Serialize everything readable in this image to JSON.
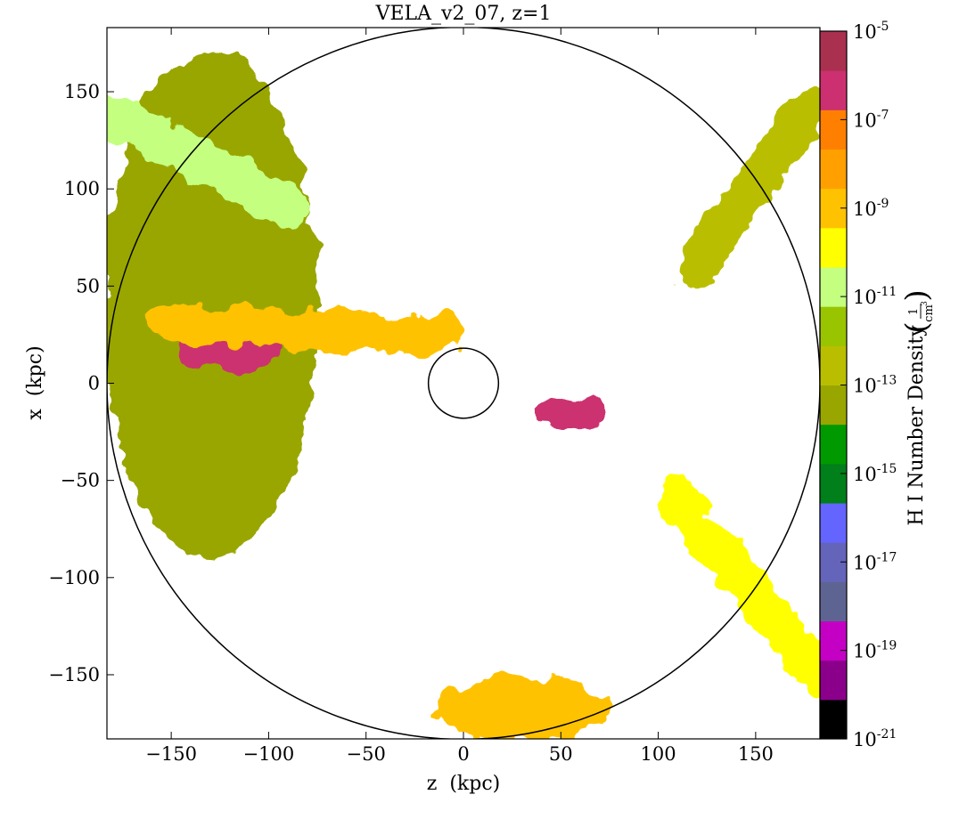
{
  "chart_data": {
    "type": "heatmap",
    "title": "VELA_v2_07, z=1",
    "xlabel": "z  (kpc)",
    "ylabel": "x  (kpc)",
    "xlim": [
      -183,
      183
    ],
    "ylim": [
      -183,
      183
    ],
    "x_ticks": [
      -150,
      -100,
      -50,
      0,
      50,
      100,
      150
    ],
    "y_ticks": [
      150,
      100,
      50,
      0,
      -50,
      -100,
      -150
    ],
    "x_tick_labels": [
      "−150",
      "−100",
      "−50",
      "0",
      "50",
      "100",
      "150"
    ],
    "y_tick_labels": [
      "150",
      "100",
      "50",
      "0",
      "−50",
      "−100",
      "−150"
    ],
    "circles": [
      {
        "center": [
          0,
          0
        ],
        "radius": 183
      },
      {
        "center": [
          0,
          0
        ],
        "radius": 18
      }
    ],
    "colorbar": {
      "label": "H I Number Density",
      "unit_numerator": "1",
      "unit_denominator": "cm",
      "unit_power": "3",
      "scale": "log",
      "range_exponent": [
        -21,
        -5
      ],
      "tick_exponents": [
        -5,
        -7,
        -9,
        -11,
        -13,
        -15,
        -17,
        -19,
        -21
      ],
      "tick_base": "10",
      "bins_low_to_high": [
        "#000000",
        "#8b008b",
        "#c400c4",
        "#5e6492",
        "#6464bb",
        "#6464ff",
        "#007f1a",
        "#009900",
        "#99a600",
        "#b9bf00",
        "#99c400",
        "#c4ff80",
        "#ffff00",
        "#ffc200",
        "#ffa000",
        "#ff7f00",
        "#cc3070",
        "#aa3050"
      ]
    },
    "regions": [
      {
        "name": "outer-halo",
        "shape": "blob",
        "center": [
          -130,
          40
        ],
        "extent": [
          55,
          130
        ],
        "color_bin": 8
      },
      {
        "name": "upper-left-filament",
        "shape": "band",
        "from": [
          -183,
          140
        ],
        "to": [
          -90,
          90
        ],
        "color_bin": 11
      },
      {
        "name": "left-dense-clump",
        "shape": "blob",
        "center": [
          -120,
          20
        ],
        "extent": [
          28,
          14
        ],
        "color_bin": 16
      },
      {
        "name": "left-stream",
        "shape": "band",
        "from": [
          -150,
          30
        ],
        "to": [
          -10,
          25
        ],
        "color_bin": 13
      },
      {
        "name": "right-clump",
        "shape": "blob",
        "center": [
          55,
          -15
        ],
        "extent": [
          18,
          8
        ],
        "color_bin": 16
      },
      {
        "name": "lower-right-yellow",
        "shape": "band",
        "from": [
          110,
          -60
        ],
        "to": [
          183,
          -150
        ],
        "color_bin": 12
      },
      {
        "name": "bottom-blob",
        "shape": "blob",
        "center": [
          30,
          -168
        ],
        "extent": [
          45,
          16
        ],
        "color_bin": 13
      },
      {
        "name": "upper-right-filament",
        "shape": "band",
        "from": [
          120,
          60
        ],
        "to": [
          175,
          140
        ],
        "color_bin": 9
      }
    ]
  }
}
